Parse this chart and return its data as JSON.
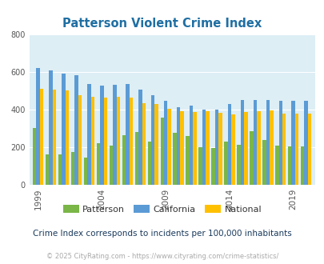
{
  "title": "Patterson Violent Crime Index",
  "subtitle": "Crime Index corresponds to incidents per 100,000 inhabitants",
  "footer": "© 2025 CityRating.com - https://www.cityrating.com/crime-statistics/",
  "years_data": [
    1999,
    2000,
    2001,
    2002,
    2003,
    2004,
    2005,
    2006,
    2007,
    2008,
    2009,
    2010,
    2011,
    2012,
    2013,
    2014,
    2015,
    2016,
    2017,
    2018,
    2019,
    2020
  ],
  "pat_data": [
    300,
    160,
    160,
    175,
    145,
    220,
    210,
    265,
    280,
    228,
    358,
    278,
    260,
    200,
    195,
    230,
    213,
    285,
    238,
    210,
    205,
    205
  ],
  "cal_data": [
    620,
    610,
    590,
    582,
    535,
    528,
    530,
    535,
    508,
    478,
    448,
    413,
    422,
    398,
    398,
    428,
    450,
    450,
    450,
    445,
    445,
    445
  ],
  "nat_data": [
    510,
    507,
    500,
    475,
    468,
    465,
    468,
    462,
    435,
    430,
    402,
    390,
    386,
    390,
    384,
    373,
    385,
    393,
    394,
    380,
    380,
    380
  ],
  "tick_years": [
    1999,
    2004,
    2009,
    2014,
    2019
  ],
  "patterson_color": "#7ab648",
  "california_color": "#5b9bd5",
  "national_color": "#ffc000",
  "bg_color": "#ddeef5",
  "title_color": "#1f6fa3",
  "subtitle_color": "#1a3a5c",
  "footer_color": "#aaaaaa",
  "ylim": [
    0,
    800
  ],
  "yticks": [
    0,
    200,
    400,
    600,
    800
  ],
  "grid_color": "#ffffff"
}
